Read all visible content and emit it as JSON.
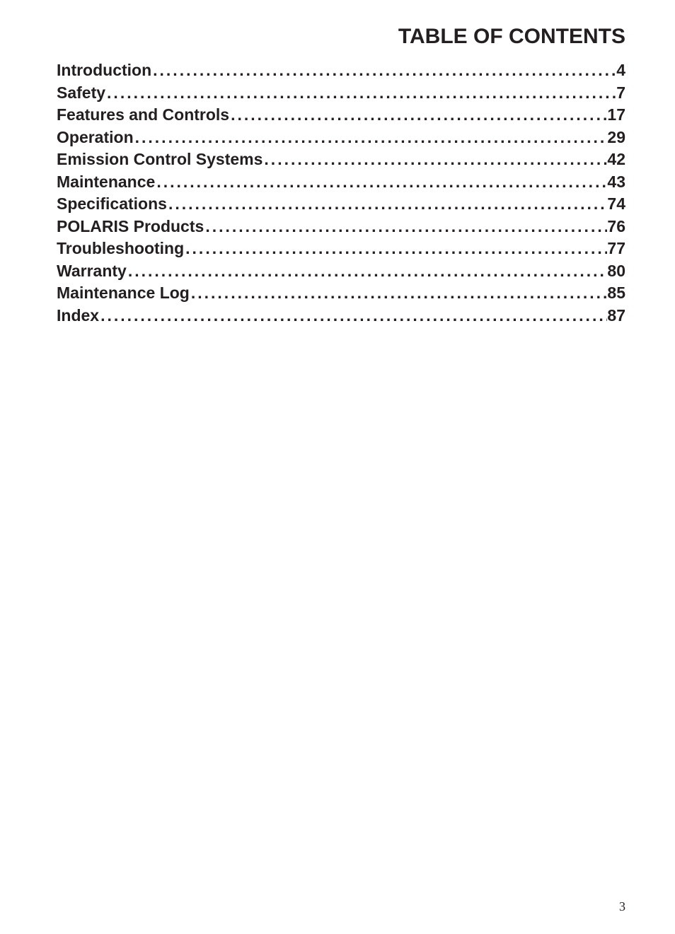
{
  "title": "TABLE OF CONTENTS",
  "entries": [
    {
      "label": "Introduction",
      "page": "4"
    },
    {
      "label": "Safety",
      "page": "7"
    },
    {
      "label": "Features and Controls",
      "page": "17"
    },
    {
      "label": "Operation",
      "page": "29"
    },
    {
      "label": "Emission Control Systems",
      "page": "42"
    },
    {
      "label": "Maintenance",
      "page": "43"
    },
    {
      "label": "Specifications",
      "page": "74"
    },
    {
      "label": "POLARIS Products",
      "page": "76"
    },
    {
      "label": "Troubleshooting",
      "page": "77"
    },
    {
      "label": "Warranty",
      "page": "80"
    },
    {
      "label": "Maintenance Log",
      "page": "85"
    },
    {
      "label": "Index",
      "page": "87"
    }
  ],
  "page_number": "3",
  "styles": {
    "title_fontsize": 30,
    "entry_fontsize": 23,
    "text_color": "#231f20",
    "background_color": "#ffffff",
    "page_number_fontsize": 18,
    "line_height": 1.37,
    "dot_letter_spacing": 3
  }
}
